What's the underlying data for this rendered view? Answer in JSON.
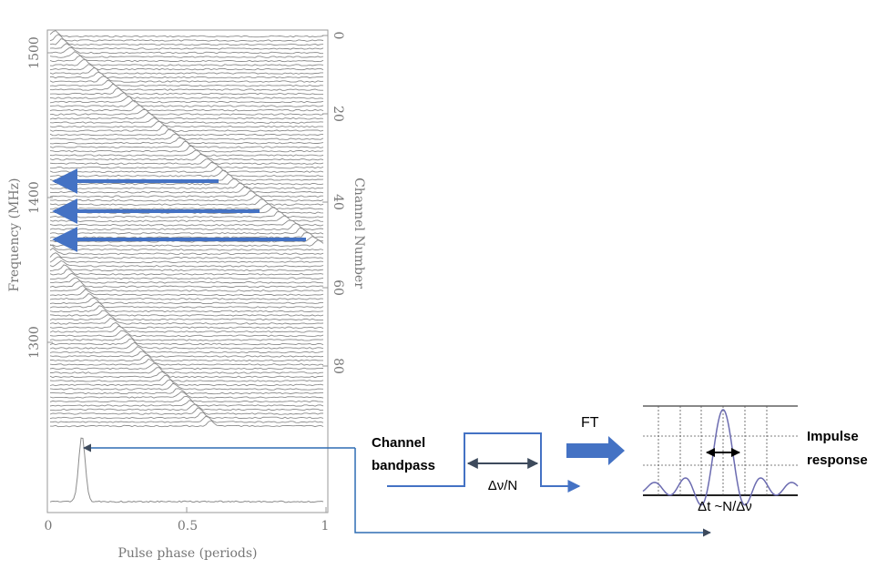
{
  "plot": {
    "y_left_label": "Frequency (MHz)",
    "y_left_ticks": [
      "1500",
      "1400",
      "1300"
    ],
    "y_right_label": "Channel Number",
    "y_right_ticks": [
      "0",
      "20",
      "40",
      "60",
      "80"
    ],
    "x_label": "Pulse phase (periods)",
    "x_ticks": [
      "0",
      "0.5",
      "1"
    ]
  },
  "annotations": {
    "channel_bandpass_line1": "Channel",
    "channel_bandpass_line2": "bandpass",
    "bandwidth_label": "Δν/N",
    "ft_label": "FT",
    "impulse_line1": "Impulse",
    "impulse_line2": "response",
    "dt_label": "Δt ~N/Δν"
  },
  "colors": {
    "arrow_blue": "#4472c4",
    "trace_gray": "#8c8c8c",
    "axis_gray": "#999999",
    "bandpass_dark": "#3d4a5c",
    "sinc_purple": "#6b6bb0"
  }
}
